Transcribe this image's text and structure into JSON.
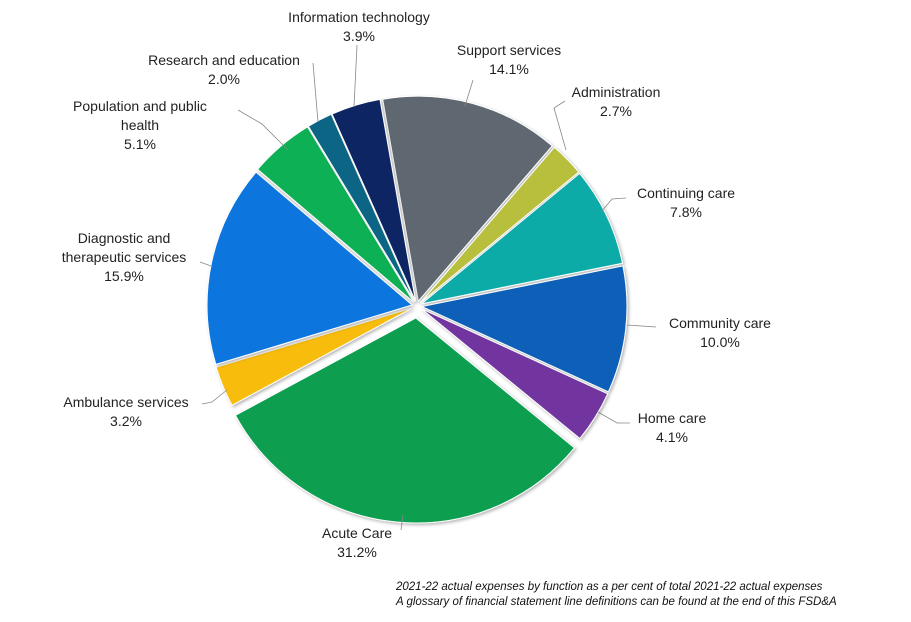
{
  "chart_data": {
    "type": "pie",
    "title": "",
    "slices": [
      {
        "label": "Support services",
        "value": 14.1,
        "display": "14.1%",
        "color": "#5f6870"
      },
      {
        "label": "Administration",
        "value": 2.7,
        "display": "2.7%",
        "color": "#b8bf3c"
      },
      {
        "label": "Continuing care",
        "value": 7.8,
        "display": "7.8%",
        "color": "#0aaba8"
      },
      {
        "label": "Community care",
        "value": 10.0,
        "display": "10.0%",
        "color": "#0a5fb8"
      },
      {
        "label": "Home care",
        "value": 4.1,
        "display": "4.1%",
        "color": "#7236a0"
      },
      {
        "label": "Acute Care",
        "value": 31.2,
        "display": "31.2%",
        "color": "#0c9e50"
      },
      {
        "label": "Ambulance services",
        "value": 3.2,
        "display": "3.2%",
        "color": "#f8bc0a"
      },
      {
        "label": "Diagnostic and therapeutic services",
        "value": 15.9,
        "display": "15.9%",
        "color": "#0b74de"
      },
      {
        "label": "Population and public health",
        "value": 5.1,
        "display": "5.1%",
        "color": "#0db054"
      },
      {
        "label": "Research and education",
        "value": 2.0,
        "display": "2.0%",
        "color": "#0a6585"
      },
      {
        "label": "Information technology",
        "value": 3.9,
        "display": "3.9%",
        "color": "#0a2864"
      }
    ],
    "exploded": "Acute Care",
    "legend": "none (data labels with leader lines)"
  },
  "footnotes": [
    "2021-22 actual expenses by function as a per cent of total 2021-22 actual expenses",
    "A glossary of financial statement line definitions can be found at the end of this FSD&A"
  ]
}
